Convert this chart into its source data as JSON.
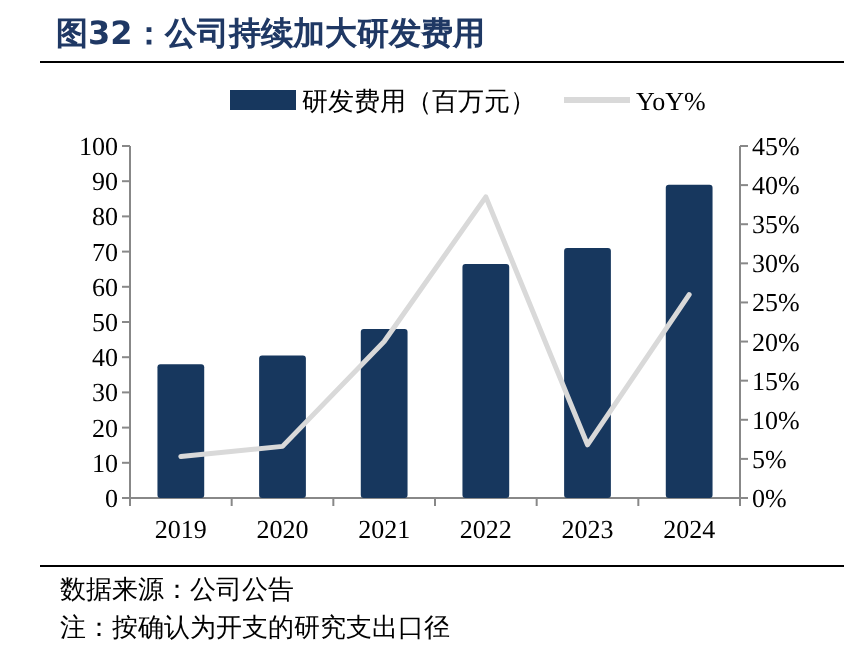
{
  "chart_data": {
    "type": "bar",
    "title": "图32：公司持续加大研发费用",
    "categories": [
      "2019",
      "2020",
      "2021",
      "2022",
      "2023",
      "2024"
    ],
    "series": [
      {
        "name": "研发费用（百万元）",
        "color": "#17375e",
        "values": [
          38,
          40.5,
          48,
          66.5,
          71,
          89
        ]
      },
      {
        "name": "YoY%",
        "type": "line",
        "axis": "y2",
        "color": "#d9d9d9",
        "values": [
          5.3,
          6.6,
          20,
          38.5,
          6.8,
          26
        ]
      }
    ],
    "ylim": [
      0,
      100
    ],
    "yticks": [
      0,
      10,
      20,
      30,
      40,
      50,
      60,
      70,
      80,
      90,
      100
    ],
    "y2lim": [
      0,
      45
    ],
    "y2ticks": [
      {
        "value": 0,
        "label": "0%"
      },
      {
        "value": 5,
        "label": "5%"
      },
      {
        "value": 10,
        "label": "10%"
      },
      {
        "value": 15,
        "label": "15%"
      },
      {
        "value": 20,
        "label": "20%"
      },
      {
        "value": 25,
        "label": "25%"
      },
      {
        "value": 30,
        "label": "30%"
      },
      {
        "value": 35,
        "label": "35%"
      },
      {
        "value": 40,
        "label": "40%"
      },
      {
        "value": 45,
        "label": "45%"
      }
    ],
    "legend": "top",
    "annotations": [
      "数据来源：公司公告",
      "注：按确认为开支的研究支出口径"
    ]
  }
}
